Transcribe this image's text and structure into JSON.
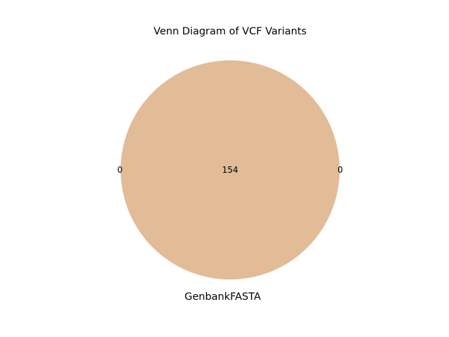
{
  "chart_data": {
    "type": "venn",
    "title": "Venn Diagram of VCF Variants",
    "sets": [
      {
        "name": "Genbank",
        "only_count": "0"
      },
      {
        "name": "FASTA",
        "only_count": "0"
      }
    ],
    "intersection_count": "154",
    "colors": {
      "left_circle": "#e2bd96",
      "right_circle": "#e0bc98",
      "overlap": "#e0bc98"
    }
  }
}
